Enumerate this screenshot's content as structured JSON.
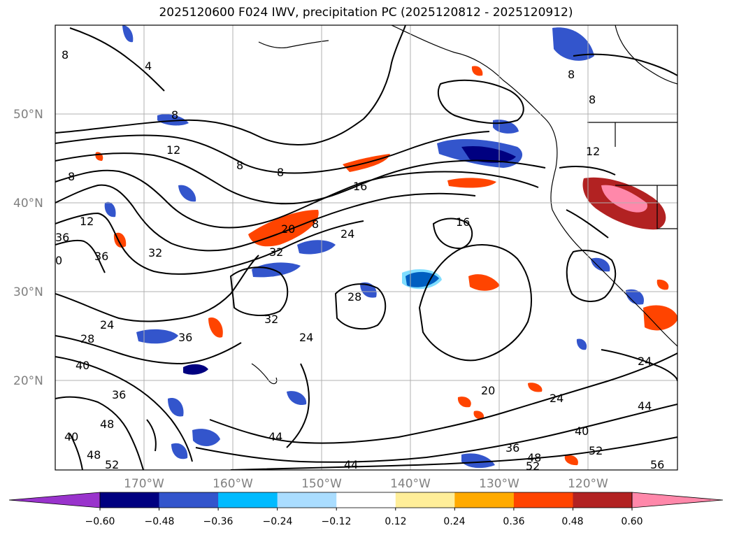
{
  "title": "2025120600 F024 IWV, precipitation PC (2025120812 - 2025120912)",
  "lat_labels": [
    "50°N",
    "40°N",
    "30°N",
    "20°N"
  ],
  "lon_labels": [
    "170°W",
    "160°W",
    "150°W",
    "140°W",
    "130°W",
    "120°W"
  ],
  "colorbar": {
    "labels": [
      "−0.60",
      "−0.48",
      "−0.36",
      "−0.24",
      "−0.12",
      "0.12",
      "0.24",
      "0.36",
      "0.48",
      "0.60"
    ],
    "colors": [
      "#9933cc",
      "#000080",
      "#3355cc",
      "#00bbff",
      "#aaddff",
      "#ffffff",
      "#ffee99",
      "#ffaa00",
      "#ff4400",
      "#b22222",
      "#ff88aa"
    ]
  },
  "contour_labels": [
    "8",
    "4",
    "8",
    "8",
    "12",
    "8",
    "8",
    "16",
    "12",
    "8",
    "8",
    "12",
    "32",
    "36",
    "32",
    "20",
    "8",
    "24",
    "16",
    "32",
    "28",
    "24",
    "28",
    "36",
    "24",
    "40",
    "36",
    "48",
    "40",
    "48",
    "52",
    "44",
    "44",
    "20",
    "24",
    "36",
    "48",
    "52",
    "40",
    "44",
    "24",
    "52",
    "56",
    "0",
    "36"
  ]
}
